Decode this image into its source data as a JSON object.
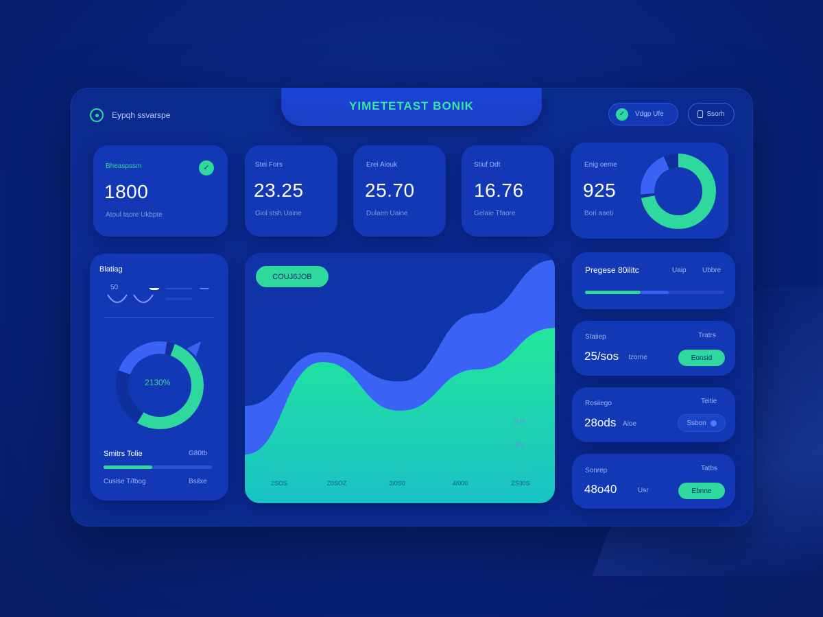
{
  "header": {
    "title": "YIMETETAST BONIK",
    "brand_label": "Eypqh ssvarspe",
    "pill_label": "Vdgp Ufe",
    "pill_icon": "check-icon",
    "search_label": "Ssorh"
  },
  "stats": [
    {
      "label": "Bheaspssm",
      "value": "1800",
      "sub": "Atoul taore   Ukbpte"
    },
    {
      "label": "Stei Fors",
      "value": "23.25",
      "sub": "Giol stsh   Uaine"
    },
    {
      "label": "Erei Aiouk",
      "value": "25.70",
      "sub": "Dulaen   Uaine"
    },
    {
      "label": "Stiuf Ddt",
      "value": "16.76",
      "sub": "Gelaie   Tfaore"
    },
    {
      "label": "Enig oeme",
      "value": "925",
      "sub": "Bori aaeti"
    }
  ],
  "donut_stat": {
    "fraction_primary": 0.72,
    "fraction_secondary": 0.2
  },
  "left_panel": {
    "title": "Blatiag",
    "toggle_label": "50",
    "gauge_value": "2130%",
    "gauge_fraction": 0.78,
    "footer_title": "Smitrs Tolie",
    "footer_right": "G80tb",
    "footer_progress": 0.45,
    "footer_left_small": "Cusise   T/Ibog",
    "footer_right_small": "Bsilxe"
  },
  "main_chart": {
    "chip_label": "COUJ6JOB",
    "x_ticks": [
      "2SOS",
      "Z0SOZ",
      "2/0S0",
      "4/000",
      "ZS30S"
    ],
    "y_tick_labels": [
      "2U0",
      "JE0"
    ]
  },
  "chart_data": {
    "type": "area",
    "x": [
      "2SOS",
      "Z0SOZ",
      "2/0S0",
      "4/000",
      "ZS30S"
    ],
    "series": [
      {
        "values": [
          40,
          62,
          50,
          78,
          100
        ]
      },
      {
        "values": [
          20,
          58,
          38,
          55,
          72
        ]
      }
    ],
    "ylim": [
      0,
      100
    ],
    "colors": [
      "#3a63f5",
      "#22e7a3"
    ]
  },
  "right_panel": {
    "progress": {
      "title": "Pregese 80ilitc",
      "col1": "Uaip",
      "col2": "Ubbre",
      "fill_green": 0.4,
      "fill_blue": 0.2
    },
    "rows": [
      {
        "title": "Staiiep",
        "right": "Tratrs",
        "value": "25/sos",
        "sub": "Izorne",
        "tag": "Eonsid"
      },
      {
        "title": "Rosiiego",
        "right": "Teitie",
        "value": "28ods",
        "sub": "Aioe",
        "tag": "Ssbon"
      },
      {
        "title": "Sonrep",
        "right": "Tatbs",
        "value": "48o40",
        "sub": "Usr",
        "tag": "Ebnne"
      }
    ]
  },
  "colors": {
    "accent_green": "#2fd89c",
    "accent_blue": "#3a63f5",
    "panel": "#1338b6",
    "frame": "#0b2a8f"
  }
}
